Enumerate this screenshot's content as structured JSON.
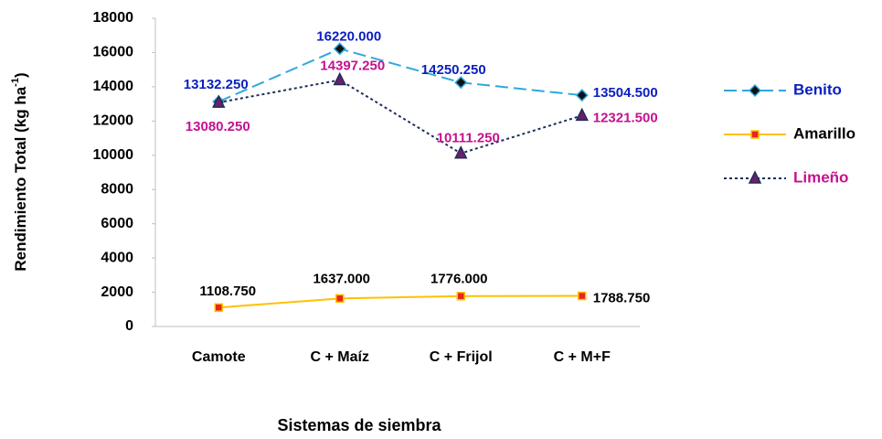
{
  "chart_data": {
    "type": "line",
    "x_label": "Sistemas de siembra",
    "y_label": {
      "text": "Rendimiento Total (kg ha",
      "sup": "-1",
      "close": ")"
    },
    "categories": [
      "Camote",
      "C + Maíz",
      "C + Frijol",
      "C + M+F"
    ],
    "ylim": [
      0,
      18000
    ],
    "yticks": [
      0,
      2000,
      4000,
      6000,
      8000,
      10000,
      12000,
      14000,
      16000,
      18000
    ],
    "series": [
      {
        "name": "Benito",
        "color": "#2ea8dc",
        "label_color": "#0a1fbf",
        "marker": "diamond",
        "dash": "14 6",
        "values": [
          13132.25,
          16220,
          14250.25,
          13504.5
        ],
        "value_labels": [
          "13132.250",
          "16220.000",
          "14250.250",
          "13504.500"
        ]
      },
      {
        "name": "Amarillo",
        "color": "#ffc000",
        "label_color": "#000000",
        "marker": "square",
        "dash": "none",
        "values": [
          1108.75,
          1637,
          1776,
          1788.75
        ],
        "value_labels": [
          "1108.750",
          "1637.000",
          "1776.000",
          "1788.750"
        ]
      },
      {
        "name": "Limeño",
        "color": "#1f2d5c",
        "label_color": "#c4118f",
        "marker": "triangle",
        "dash": "3 3",
        "values": [
          13080.25,
          14397.25,
          10111.25,
          12321.5
        ],
        "value_labels": [
          "13080.250",
          "14397.250",
          "10111.250",
          "12321.500"
        ]
      }
    ],
    "legend": "right"
  }
}
